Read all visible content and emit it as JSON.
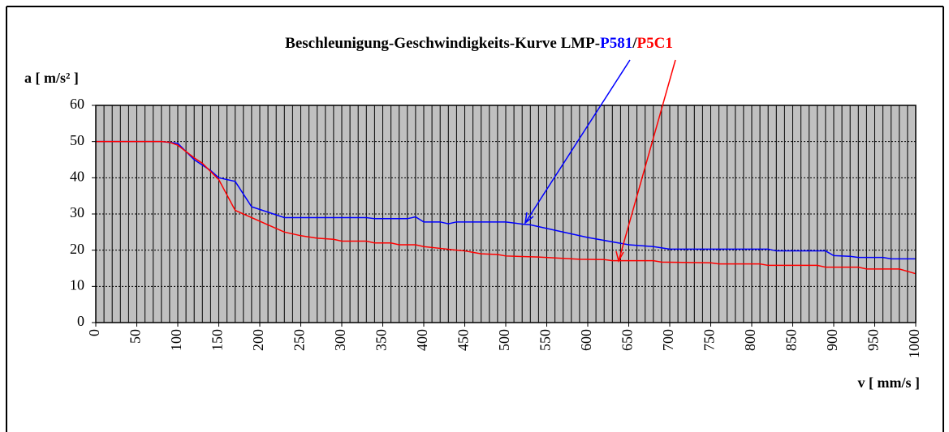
{
  "chart_data": {
    "type": "line",
    "title": [
      "Beschleunigung-Geschwindigkeits-Kurve LMP-",
      "P581",
      "/",
      "P5C1"
    ],
    "ylabel": "a [ m/s² ]",
    "xlabel": "v [ mm/s ]",
    "xlim": [
      0,
      1000
    ],
    "xticks": [
      0,
      50,
      100,
      150,
      200,
      250,
      300,
      350,
      400,
      450,
      500,
      550,
      600,
      650,
      700,
      750,
      800,
      850,
      900,
      950,
      1000
    ],
    "ylim": [
      0,
      60
    ],
    "yticks": [
      0,
      10,
      20,
      30,
      40,
      50,
      60
    ],
    "grid": true,
    "series": [
      {
        "name": "P581",
        "color": "#0000ff",
        "x": [
          0,
          80,
          100,
          120,
          140,
          150,
          170,
          190,
          210,
          230,
          250,
          330,
          340,
          380,
          390,
          400,
          420,
          430,
          440,
          500,
          520,
          530,
          600,
          650,
          680,
          700,
          820,
          830,
          890,
          900,
          920,
          930,
          960,
          970,
          1000
        ],
        "values": [
          50,
          50,
          49.5,
          45,
          42,
          40,
          39,
          32,
          30.5,
          29,
          29,
          29,
          28.7,
          28.7,
          29.2,
          27.8,
          27.8,
          27.3,
          27.8,
          27.8,
          27.2,
          27,
          23.5,
          21.5,
          21,
          20.3,
          20.3,
          19.8,
          19.8,
          18.5,
          18.3,
          18,
          18,
          17.6,
          17.6
        ]
      },
      {
        "name": "P5C1",
        "color": "#ff0000",
        "x": [
          0,
          80,
          90,
          100,
          120,
          130,
          150,
          170,
          190,
          210,
          230,
          250,
          270,
          290,
          300,
          330,
          340,
          360,
          370,
          390,
          400,
          420,
          440,
          450,
          470,
          490,
          500,
          540,
          590,
          620,
          630,
          680,
          690,
          750,
          760,
          810,
          820,
          880,
          890,
          930,
          940,
          980,
          1000
        ],
        "values": [
          50,
          50,
          49.8,
          49,
          45.5,
          44,
          39.5,
          31,
          29,
          27,
          25,
          24,
          23.3,
          23,
          22.5,
          22.5,
          22,
          22,
          21.5,
          21.5,
          21,
          20.5,
          20,
          19.8,
          19,
          18.8,
          18.4,
          18.1,
          17.5,
          17.4,
          17.1,
          17.1,
          16.7,
          16.5,
          16.2,
          16.2,
          15.8,
          15.8,
          15.3,
          15.3,
          14.8,
          14.8,
          13.5
        ]
      }
    ]
  }
}
